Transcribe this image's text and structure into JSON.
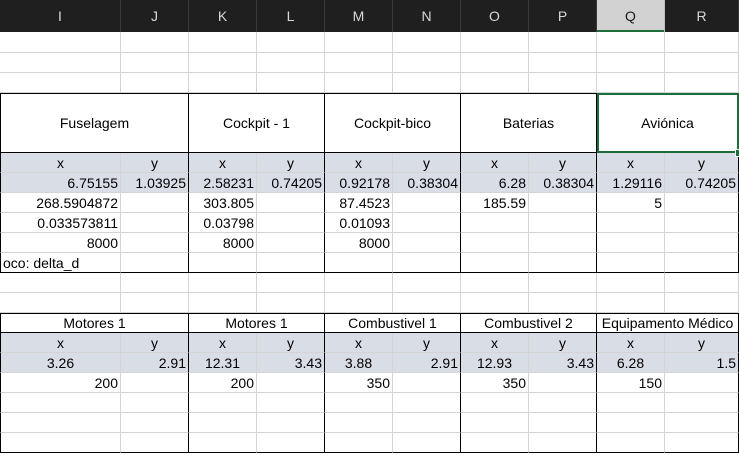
{
  "columns": [
    "I",
    "J",
    "K",
    "L",
    "M",
    "N",
    "O",
    "P",
    "Q",
    "R"
  ],
  "top_block": {
    "groups": [
      "Fuselagem",
      "Cockpit - 1",
      "Cockpit-bico",
      "Baterias",
      "Aviónica"
    ],
    "xy": [
      "x",
      "y"
    ],
    "rows": [
      [
        "6.75155",
        "1.03925",
        "2.58231",
        "0.74205",
        "0.92178",
        "0.38304",
        "6.28",
        "0.38304",
        "1.29116",
        "0.74205"
      ],
      [
        "268.5904872",
        "",
        "303.805",
        "",
        "87.4523",
        "",
        "185.59",
        "",
        "5",
        ""
      ],
      [
        "0.033573811",
        "",
        "0.03798",
        "",
        "0.01093",
        "",
        "",
        "",
        "",
        ""
      ],
      [
        "8000",
        "",
        "8000",
        "",
        "8000",
        "",
        "",
        "",
        "",
        ""
      ]
    ],
    "note": "oco: delta_d"
  },
  "bottom_block": {
    "groups": [
      "Motores 1",
      "Motores 1",
      "Combustivel 1",
      "Combustivel 2",
      "Equipamento Médico"
    ],
    "xy": [
      "x",
      "y"
    ],
    "rows": [
      [
        "3.26",
        "2.91",
        "12.31",
        "3.43",
        "3.88",
        "2.91",
        "12.93",
        "3.43",
        "6.28",
        "1.5"
      ],
      [
        "200",
        "",
        "200",
        "",
        "350",
        "",
        "350",
        "",
        "150",
        ""
      ]
    ]
  }
}
